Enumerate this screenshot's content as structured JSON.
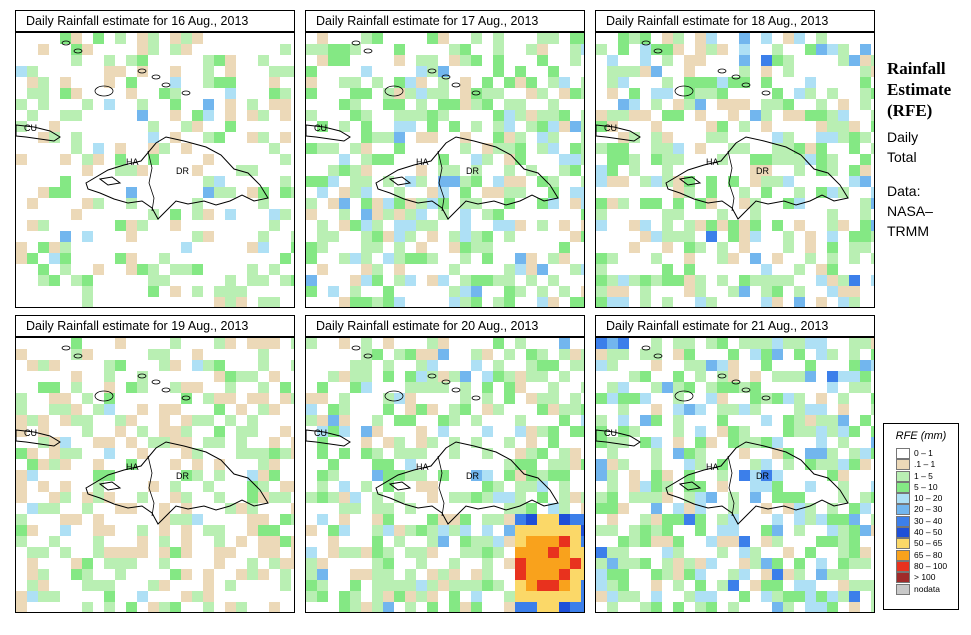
{
  "panels": [
    {
      "title": "Daily Rainfall estimate for  16 Aug., 2013",
      "labels": {
        "cu": "CU",
        "ha": "HA",
        "dr": "DR"
      }
    },
    {
      "title": "Daily Rainfall estimate for  17 Aug., 2013",
      "labels": {
        "cu": "CU",
        "ha": "HA",
        "dr": "DR"
      }
    },
    {
      "title": "Daily Rainfall estimate for  18 Aug., 2013",
      "labels": {
        "cu": "CU",
        "ha": "HA",
        "dr": "DR"
      }
    },
    {
      "title": "Daily Rainfall estimate for  19 Aug., 2013",
      "labels": {
        "cu": "CU",
        "ha": "HA",
        "dr": "DR"
      }
    },
    {
      "title": "Daily Rainfall estimate for  20 Aug., 2013",
      "labels": {
        "cu": "CU",
        "ha": "HA",
        "dr": "DR"
      }
    },
    {
      "title": "Daily Rainfall estimate for  21 Aug., 2013",
      "labels": {
        "cu": "CU",
        "ha": "HA",
        "dr": "DR"
      }
    }
  ],
  "sidebar": {
    "title_line1": "Rainfall",
    "title_line2": "Estimate",
    "title_line3": "(RFE)",
    "period_line1": "Daily",
    "period_line2": "Total",
    "source_line1": "Data:",
    "source_line2": "NASA–",
    "source_line3": "TRMM"
  },
  "legend": {
    "title": "RFE (mm)",
    "items": [
      {
        "label": "0 – 1",
        "color": "#ffffff"
      },
      {
        "label": ".1 – 1",
        "color": "#ecd9b8"
      },
      {
        "label": "1 – 5",
        "color": "#b9efb3"
      },
      {
        "label": "5 – 10",
        "color": "#84e884"
      },
      {
        "label": "10 – 20",
        "color": "#aee0f5"
      },
      {
        "label": "20 – 30",
        "color": "#72b6ee"
      },
      {
        "label": "30 – 40",
        "color": "#3c7fea"
      },
      {
        "label": "40 – 50",
        "color": "#1e50d8"
      },
      {
        "label": "50 – 65",
        "color": "#fbd868"
      },
      {
        "label": "65 – 80",
        "color": "#f9a21c"
      },
      {
        "label": "80 – 100",
        "color": "#e8321e"
      },
      {
        "label": "> 100",
        "color": "#a02a2a"
      },
      {
        "label": "nodata",
        "color": "#c8c8c8"
      }
    ]
  }
}
